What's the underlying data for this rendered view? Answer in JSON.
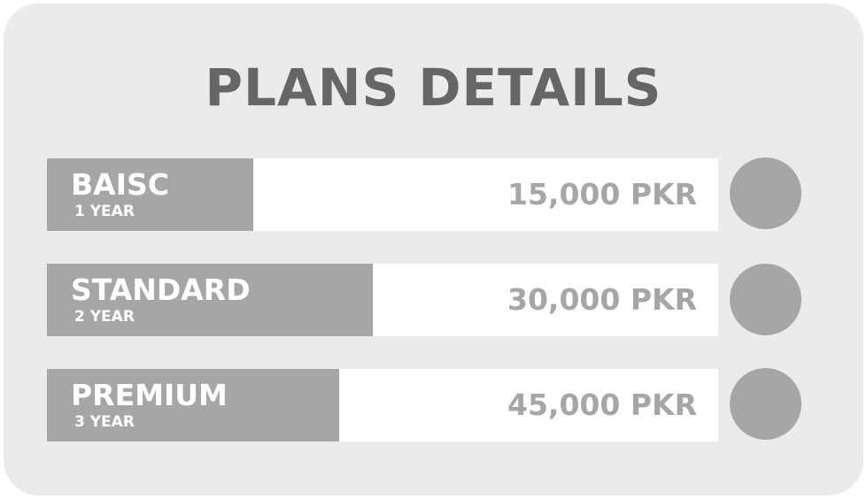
{
  "title": "PLANS DETAILS",
  "plans": [
    {
      "name": "BAISC",
      "duration": "1 YEAR",
      "price": "15,000 PKR"
    },
    {
      "name": "STANDARD",
      "duration": "2 YEAR",
      "price": "30,000 PKR"
    },
    {
      "name": "PREMIUM",
      "duration": "3 YEAR",
      "price": "45,000 PKR"
    }
  ],
  "colors": {
    "card_background": "#ebebeb",
    "title_text": "#666666",
    "label_background": "#a6a6a6",
    "price_text": "#a6a6a6",
    "circle": "#a6a6a6"
  }
}
